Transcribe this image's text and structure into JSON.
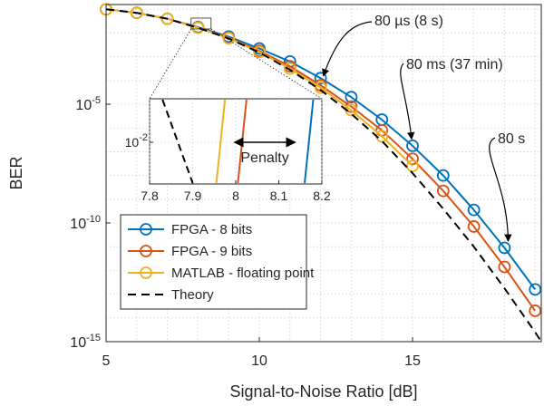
{
  "chart_data": {
    "type": "line",
    "xlabel": "Signal-to-Noise Ratio [dB]",
    "ylabel": "BER",
    "xlim": [
      5,
      19.2
    ],
    "ylim_exp": [
      -15,
      -0.8
    ],
    "x_ticks": [
      "5",
      "10",
      "15"
    ],
    "y_ticks": [
      {
        "base": "10",
        "exp": "-5"
      },
      {
        "base": "10",
        "exp": "-10"
      },
      {
        "base": "10",
        "exp": "-15"
      }
    ],
    "scale": "log-y",
    "grid": "dotted",
    "legend_position": "bottom-left",
    "series": [
      {
        "name": "FPGA - 8 bits",
        "color": "#0072BD",
        "marker": "circle",
        "x": [
          5,
          6,
          7,
          8,
          9,
          10,
          11,
          12,
          13,
          14,
          15,
          16,
          17,
          18,
          19
        ],
        "log10_y": [
          -1.0,
          -1.15,
          -1.4,
          -1.75,
          -2.15,
          -2.65,
          -3.2,
          -3.9,
          -4.7,
          -5.65,
          -6.75,
          -8.0,
          -9.45,
          -11.05,
          -12.8
        ]
      },
      {
        "name": "FPGA - 9 bits",
        "color": "#D95319",
        "marker": "circle",
        "x": [
          5,
          6,
          7,
          8,
          9,
          10,
          11,
          12,
          13,
          14,
          15,
          16,
          17,
          18,
          19
        ],
        "log10_y": [
          -1.0,
          -1.15,
          -1.4,
          -1.77,
          -2.2,
          -2.75,
          -3.4,
          -4.2,
          -5.1,
          -6.1,
          -7.3,
          -8.65,
          -10.15,
          -11.85,
          -13.7
        ]
      },
      {
        "name": "MATLAB - floating point",
        "color": "#EDB120",
        "marker": "circle",
        "x": [
          5,
          6,
          7,
          8,
          9,
          10,
          11,
          12,
          13,
          14,
          15
        ],
        "log10_y": [
          -1.0,
          -1.15,
          -1.4,
          -1.78,
          -2.22,
          -2.8,
          -3.5,
          -4.3,
          -5.25,
          -6.35,
          -7.6
        ]
      },
      {
        "name": "Theory",
        "color": "#000000",
        "dash": "dashed",
        "x": [
          5,
          6,
          7,
          8,
          9,
          10,
          11,
          12,
          13,
          14,
          15,
          16,
          17,
          18,
          19,
          19.2
        ],
        "log10_y": [
          -1.0,
          -1.15,
          -1.4,
          -1.78,
          -2.23,
          -2.82,
          -3.55,
          -4.4,
          -5.4,
          -6.55,
          -7.9,
          -9.4,
          -11.0,
          -12.75,
          -14.6,
          -15.0
        ]
      }
    ],
    "annotations": [
      {
        "text": "80 µs (8 s)",
        "target_x": 12,
        "target_log10_y": -4.0
      },
      {
        "text": "80 ms (37 min)",
        "target_x": 15,
        "target_log10_y": -6.7
      },
      {
        "text": "80 s",
        "target_x": 18,
        "target_log10_y": -11.0
      }
    ],
    "inset": {
      "x_ticks": [
        "7.8",
        "7.9",
        "8",
        "8.1",
        "8.2"
      ],
      "y_tick": {
        "base": "10",
        "exp": "-2"
      },
      "penalty_label": "Penalty",
      "lines": [
        {
          "series": "Theory",
          "x_bottom": 7.9,
          "x_top": 7.83
        },
        {
          "series": "MATLAB - floating point",
          "x_bottom": 7.955,
          "x_top": 7.975
        },
        {
          "series": "FPGA - 9 bits",
          "x_bottom": 8.005,
          "x_top": 8.025
        },
        {
          "series": "FPGA - 8 bits",
          "x_bottom": 8.16,
          "x_top": 8.18
        }
      ],
      "penalty_from_x": 7.98,
      "penalty_to_x": 8.155
    }
  }
}
